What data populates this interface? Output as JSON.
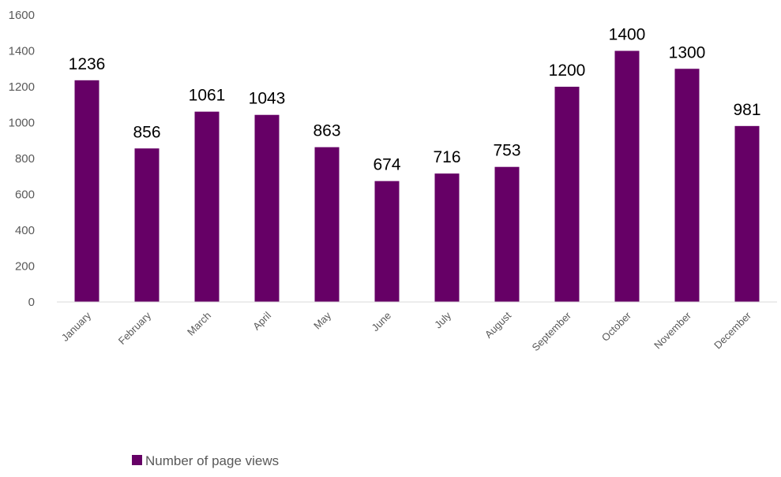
{
  "chart_data": {
    "type": "bar",
    "categories": [
      "January",
      "February",
      "March",
      "April",
      "May",
      "June",
      "July",
      "August",
      "September",
      "October",
      "November",
      "December"
    ],
    "series": [
      {
        "name": "Number of page views",
        "values": [
          1236,
          856,
          1061,
          1043,
          863,
          674,
          716,
          753,
          1200,
          1400,
          1300,
          981
        ],
        "color": "#660066"
      }
    ],
    "ylim": [
      0,
      1600
    ],
    "yticks": [
      0,
      200,
      400,
      600,
      800,
      1000,
      1200,
      1400,
      1600
    ],
    "grid": false,
    "data_labels": true,
    "legend_position": "bottom"
  }
}
